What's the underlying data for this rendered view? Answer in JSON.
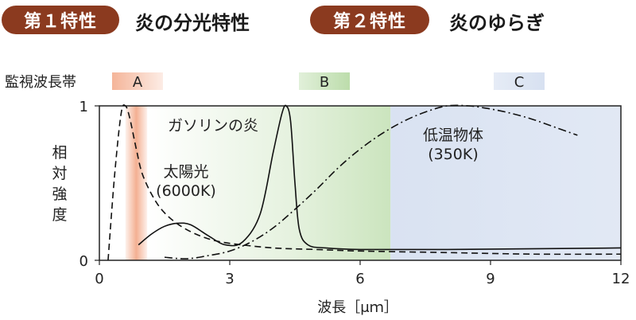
{
  "header": {
    "feature1_badge": "第１特性",
    "feature1_title": "炎の分光特性",
    "feature2_badge": "第２特性",
    "feature2_title": "炎のゆらぎ"
  },
  "colors": {
    "badge": "#8b3a1f",
    "band_a": "#f2a27f",
    "band_b": "#b5d9a2",
    "band_c": "#d5dff0"
  },
  "chart_data": {
    "type": "line",
    "xlabel": "波長［μｍ］",
    "ylabel": "相対強度",
    "xlim": [
      0,
      12
    ],
    "ylim": [
      0,
      1
    ],
    "x_ticks": [
      "0",
      "3",
      "6",
      "9",
      "12"
    ],
    "y_ticks": [
      "0",
      "1"
    ],
    "grid": false,
    "bands_title": "監視波長帯",
    "bands": [
      {
        "label": "A",
        "range": [
          0.6,
          1.1
        ],
        "color": "#f2a27f"
      },
      {
        "label": "B",
        "range": [
          1.1,
          6.7
        ],
        "color": "#b5d9a2"
      },
      {
        "label": "C",
        "range": [
          6.7,
          12
        ],
        "color": "#d5dff0"
      }
    ],
    "series": [
      {
        "name": "太陽光\n(6000K)",
        "label_lines": [
          "太陽光",
          "(6000K)"
        ],
        "style": "dashed",
        "x": [
          0.2,
          0.35,
          0.5,
          0.6,
          0.7,
          0.85,
          1.0,
          1.3,
          1.6,
          2.0,
          2.5,
          3.0,
          4.0,
          5.0,
          6.0,
          8.0,
          10.0,
          12.0
        ],
        "y": [
          0.0,
          0.55,
          0.95,
          1.0,
          0.92,
          0.72,
          0.55,
          0.38,
          0.28,
          0.2,
          0.14,
          0.11,
          0.08,
          0.07,
          0.06,
          0.05,
          0.04,
          0.04
        ]
      },
      {
        "name": "ガソリンの炎",
        "label_lines": [
          "ガソリンの炎"
        ],
        "style": "solid",
        "x": [
          0.9,
          1.2,
          1.5,
          1.8,
          2.1,
          2.5,
          2.9,
          3.3,
          3.7,
          4.0,
          4.2,
          4.3,
          4.4,
          4.5,
          4.6,
          4.8,
          5.2,
          6.0,
          8.0,
          12.0
        ],
        "y": [
          0.1,
          0.17,
          0.22,
          0.24,
          0.23,
          0.16,
          0.1,
          0.12,
          0.3,
          0.7,
          0.95,
          1.0,
          0.9,
          0.5,
          0.2,
          0.1,
          0.08,
          0.07,
          0.07,
          0.08
        ]
      },
      {
        "name": "低温物体\n(350K)",
        "label_lines": [
          "低温物体",
          "(350K)"
        ],
        "style": "dashdot",
        "x": [
          1.5,
          2.0,
          2.5,
          3.0,
          3.5,
          4.0,
          4.5,
          5.0,
          5.5,
          6.0,
          6.5,
          7.0,
          7.5,
          8.0,
          8.5,
          9.0,
          9.5,
          10.0,
          10.5,
          11.0
        ],
        "y": [
          0.02,
          0.01,
          0.03,
          0.06,
          0.12,
          0.21,
          0.33,
          0.46,
          0.6,
          0.72,
          0.82,
          0.9,
          0.96,
          1.0,
          1.0,
          0.98,
          0.95,
          0.91,
          0.86,
          0.81
        ]
      }
    ]
  }
}
